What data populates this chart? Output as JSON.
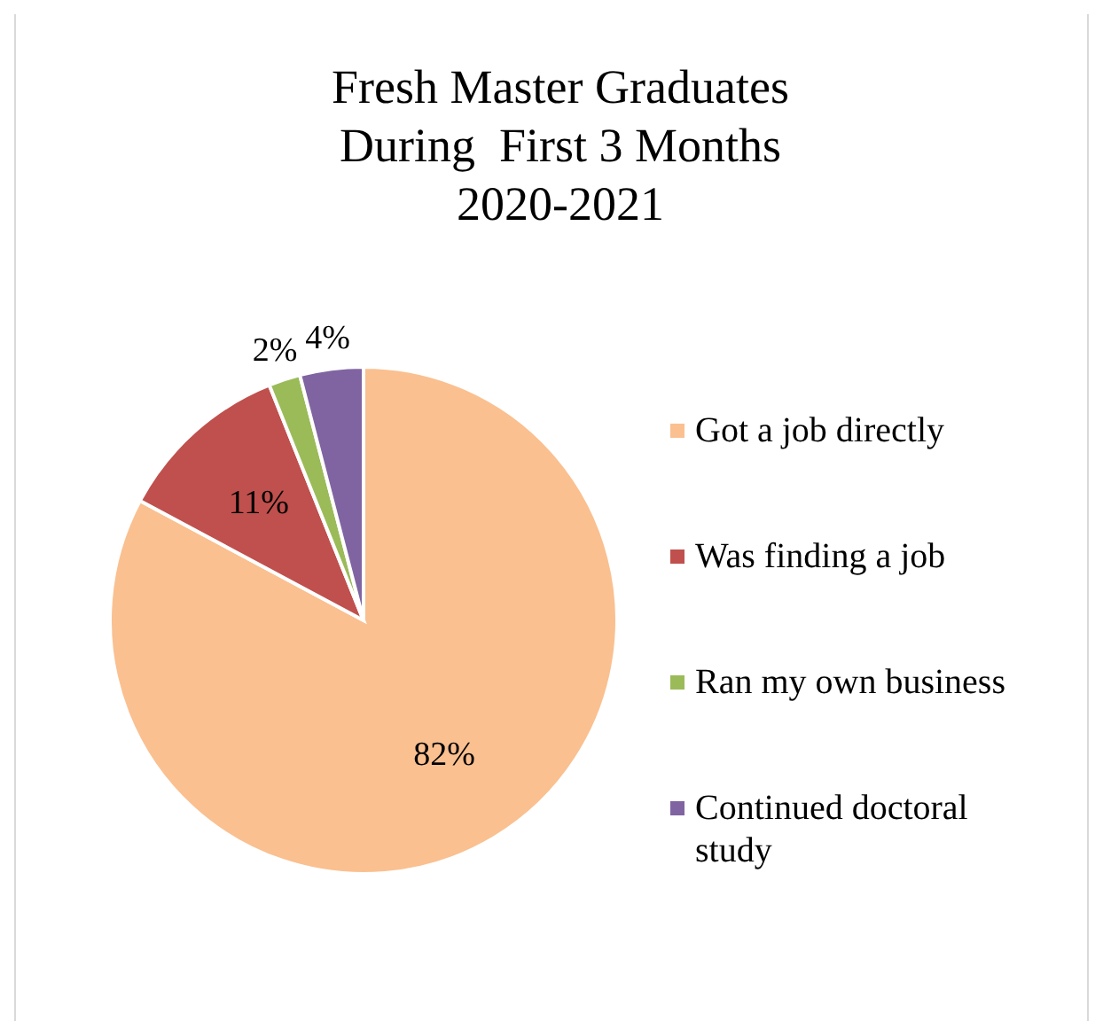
{
  "chart_data": {
    "type": "pie",
    "title": "Fresh Master Graduates\nDuring  First 3 Months\n2020-2021",
    "categories": [
      "Got a job directly",
      "Was finding a job",
      "Ran my own business",
      "Continued doctoral study"
    ],
    "values": [
      82,
      11,
      2,
      4
    ],
    "colors": [
      "#fac090",
      "#c0504d",
      "#9bbb59",
      "#8064a2"
    ],
    "value_labels": [
      "82%",
      "11%",
      "2%",
      "4%"
    ],
    "legend": "right"
  }
}
